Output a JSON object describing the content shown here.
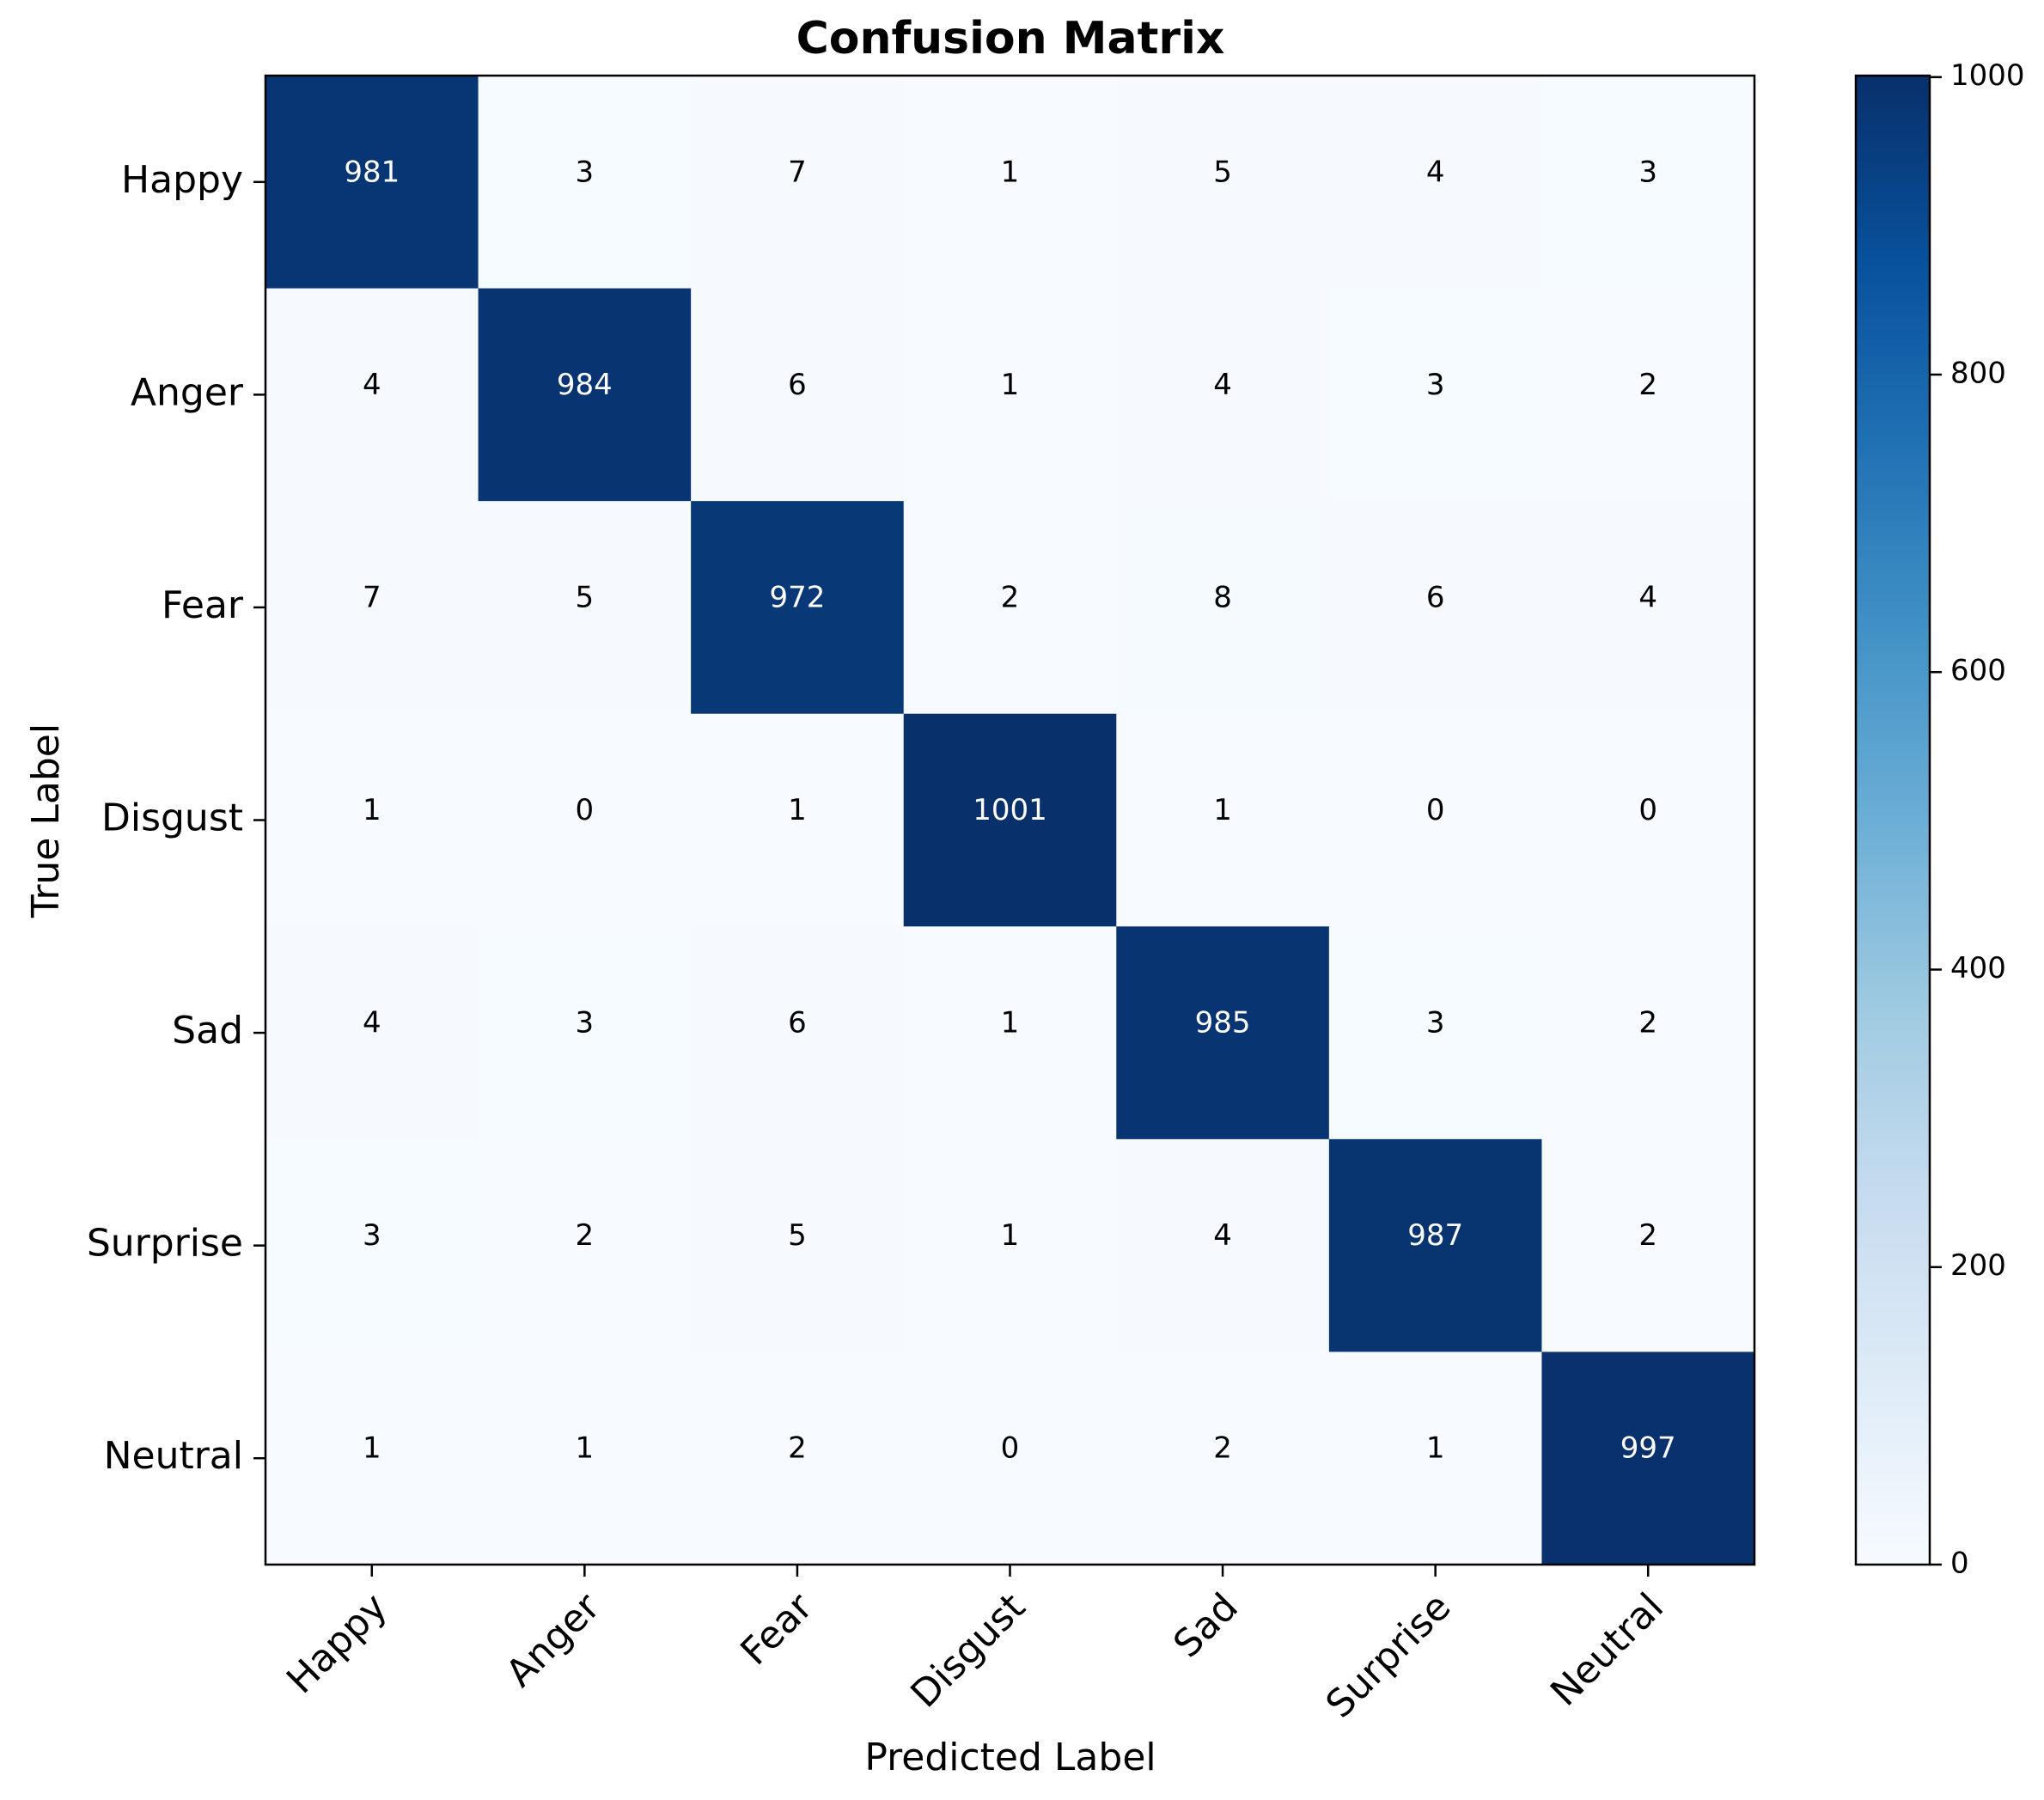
{
  "chart_data": {
    "type": "heatmap",
    "title": "Confusion Matrix",
    "xlabel": "Predicted Label",
    "ylabel": "True Label",
    "x_categories": [
      "Happy",
      "Anger",
      "Fear",
      "Disgust",
      "Sad",
      "Surprise",
      "Neutral"
    ],
    "y_categories": [
      "Happy",
      "Anger",
      "Fear",
      "Disgust",
      "Sad",
      "Surprise",
      "Neutral"
    ],
    "values": [
      [
        981,
        3,
        7,
        1,
        5,
        4,
        3
      ],
      [
        4,
        984,
        6,
        1,
        4,
        3,
        2
      ],
      [
        7,
        5,
        972,
        2,
        8,
        6,
        4
      ],
      [
        1,
        0,
        1,
        1001,
        1,
        0,
        0
      ],
      [
        4,
        3,
        6,
        1,
        985,
        3,
        2
      ],
      [
        3,
        2,
        5,
        1,
        4,
        987,
        2
      ],
      [
        1,
        1,
        2,
        0,
        2,
        1,
        997
      ]
    ],
    "colormap": "Blues",
    "colorbar": {
      "min": 0,
      "max": 1001,
      "ticks": [
        0,
        200,
        400,
        600,
        800,
        1000
      ]
    },
    "colors": {
      "light": "#f7fbff",
      "dark": "#08306b",
      "text_dark": "#000000",
      "text_light": "#ffffff"
    }
  }
}
